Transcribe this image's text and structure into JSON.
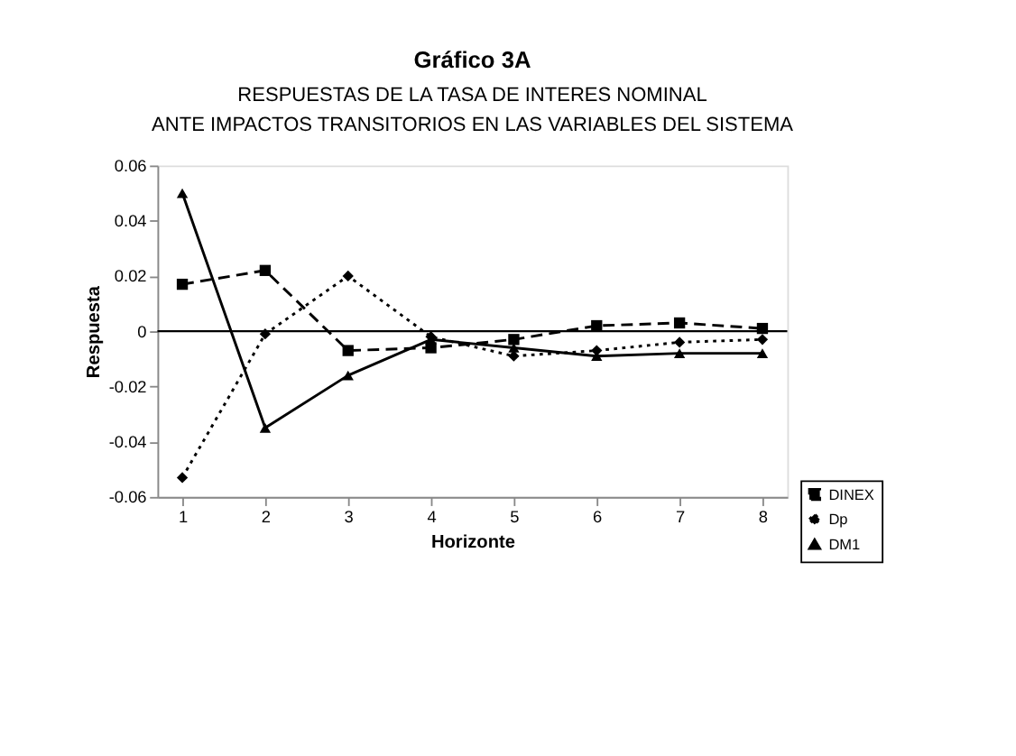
{
  "chart_data": {
    "type": "line",
    "title": "Gráfico 3A",
    "subtitle": "RESPUESTAS DE LA TASA DE INTERES NOMINAL",
    "annotations": [
      "ANTE IMPACTOS TRANSITORIOS EN LAS VARIABLES DEL SISTEMA"
    ],
    "xlabel": "Horizonte",
    "ylabel": "Respuesta",
    "x": [
      1,
      2,
      3,
      4,
      5,
      6,
      7,
      8
    ],
    "series": [
      {
        "name": "DINEX",
        "color": "#000000",
        "marker": "square",
        "line_style": "dashed",
        "values": [
          0.017,
          0.022,
          -0.007,
          -0.006,
          -0.003,
          0.002,
          0.003,
          0.001
        ]
      },
      {
        "name": "Dp",
        "color": "#000000",
        "marker": "diamond",
        "line_style": "dotted",
        "values": [
          -0.053,
          -0.001,
          0.02,
          -0.002,
          -0.009,
          -0.007,
          -0.004,
          -0.003
        ]
      },
      {
        "name": "DM1",
        "color": "#000000",
        "marker": "triangle",
        "line_style": "solid",
        "values": [
          0.05,
          -0.035,
          -0.016,
          -0.003,
          -0.006,
          -0.009,
          -0.008,
          -0.008
        ]
      }
    ],
    "xlim": [
      0.7,
      8.3
    ],
    "xticks": [
      1,
      2,
      3,
      4,
      5,
      6,
      7,
      8
    ],
    "ylim": [
      -0.06,
      0.06
    ],
    "yticks": [
      -0.06,
      -0.04,
      -0.02,
      0,
      0.02,
      0.04,
      0.06
    ],
    "ref_lines": [
      {
        "axis": "y",
        "value": 0,
        "label": null,
        "color": "#000000",
        "line_style": "solid"
      }
    ],
    "grid": false,
    "legend": "bottom right"
  }
}
